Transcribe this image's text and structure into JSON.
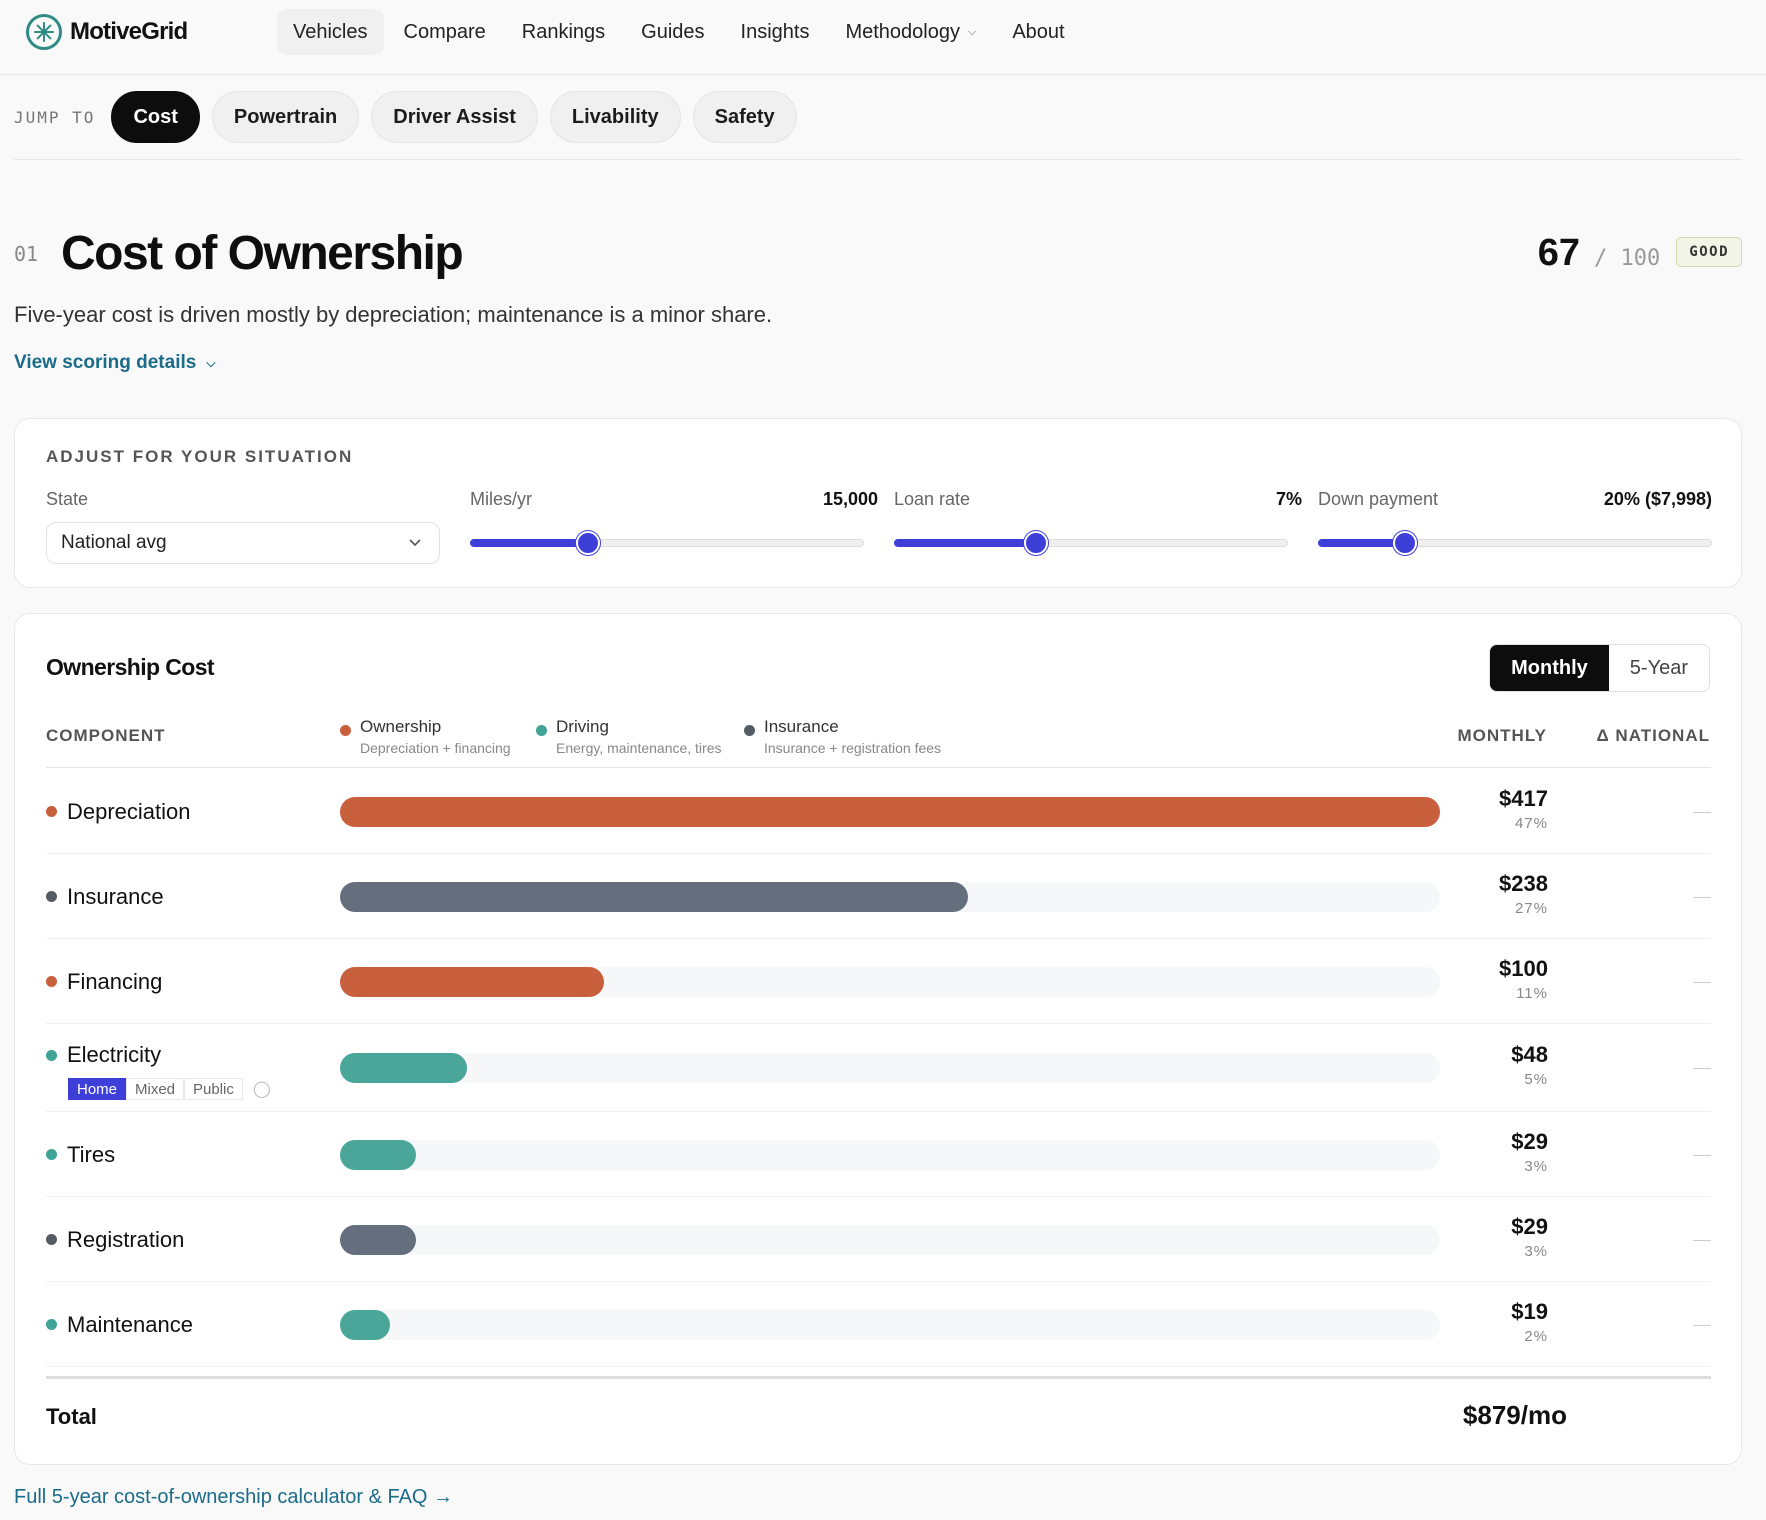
{
  "brand": {
    "name": "MotiveGrid",
    "logo_icon": "asterisk-circle-icon",
    "accent": "#2f8c84"
  },
  "nav": {
    "items": [
      {
        "label": "Vehicles",
        "active": true
      },
      {
        "label": "Compare"
      },
      {
        "label": "Rankings"
      },
      {
        "label": "Guides"
      },
      {
        "label": "Insights"
      },
      {
        "label": "Methodology",
        "dropdown": true
      },
      {
        "label": "About"
      }
    ]
  },
  "jump": {
    "label": "JUMP TO",
    "pills": [
      {
        "label": "Cost",
        "active": true
      },
      {
        "label": "Powertrain"
      },
      {
        "label": "Driver Assist"
      },
      {
        "label": "Livability"
      },
      {
        "label": "Safety"
      }
    ]
  },
  "section": {
    "number": "01",
    "title": "Cost of Ownership",
    "subtitle": "Five-year cost is driven mostly by depreciation; maintenance is a minor share.",
    "details_link": "View scoring details",
    "score": {
      "value": "67",
      "of": "/ 100",
      "badge": "GOOD"
    }
  },
  "adjust": {
    "title": "ADJUST FOR YOUR SITUATION",
    "state": {
      "label": "State",
      "value": "National avg"
    },
    "miles": {
      "label": "Miles/yr",
      "value": "15,000",
      "fraction": 0.3
    },
    "loan": {
      "label": "Loan rate",
      "value": "7%",
      "fraction": 0.36
    },
    "down": {
      "label": "Down payment",
      "value": "20% ($7,998)",
      "fraction": 0.22
    },
    "slider_color": "#3e3fd9"
  },
  "ownership": {
    "title": "Ownership Cost",
    "toggle": {
      "monthly": "Monthly",
      "five_year": "5-Year",
      "active": "monthly"
    },
    "headers": {
      "component": "COMPONENT",
      "monthly": "MONTHLY",
      "national": "Δ NATIONAL"
    },
    "legend": [
      {
        "name": "Ownership",
        "desc": "Depreciation + financing",
        "color": "#c9603d"
      },
      {
        "name": "Driving",
        "desc": "Energy, maintenance, tires",
        "color": "#3fa395"
      },
      {
        "name": "Insurance",
        "desc": "Insurance + registration fees",
        "color": "#555b64"
      }
    ],
    "rows": [
      {
        "label": "Depreciation",
        "amount": "$417",
        "pct": "47%",
        "value": 417,
        "color": "#c9603d",
        "bar": "#c9603d"
      },
      {
        "label": "Insurance",
        "amount": "$238",
        "pct": "27%",
        "value": 238,
        "color": "#555b64",
        "bar": "#646e7c"
      },
      {
        "label": "Financing",
        "amount": "$100",
        "pct": "11%",
        "value": 100,
        "color": "#c9603d",
        "bar": "#c9603d"
      },
      {
        "label": "Electricity",
        "amount": "$48",
        "pct": "5%",
        "value": 48,
        "color": "#3fa395",
        "bar": "#4aa699",
        "charging": {
          "options": [
            "Home",
            "Mixed",
            "Public"
          ],
          "active": "Home",
          "icon": "lightbulb-icon"
        }
      },
      {
        "label": "Tires",
        "amount": "$29",
        "pct": "3%",
        "value": 29,
        "color": "#3fa395",
        "bar": "#4aa699"
      },
      {
        "label": "Registration",
        "amount": "$29",
        "pct": "3%",
        "value": 29,
        "color": "#555b64",
        "bar": "#646e7c"
      },
      {
        "label": "Maintenance",
        "amount": "$19",
        "pct": "2%",
        "value": 19,
        "color": "#3fa395",
        "bar": "#4aa699"
      }
    ],
    "total": {
      "label": "Total",
      "value": "$879/mo"
    }
  },
  "footer": {
    "link": "Full 5-year cost-of-ownership calculator & FAQ →"
  }
}
